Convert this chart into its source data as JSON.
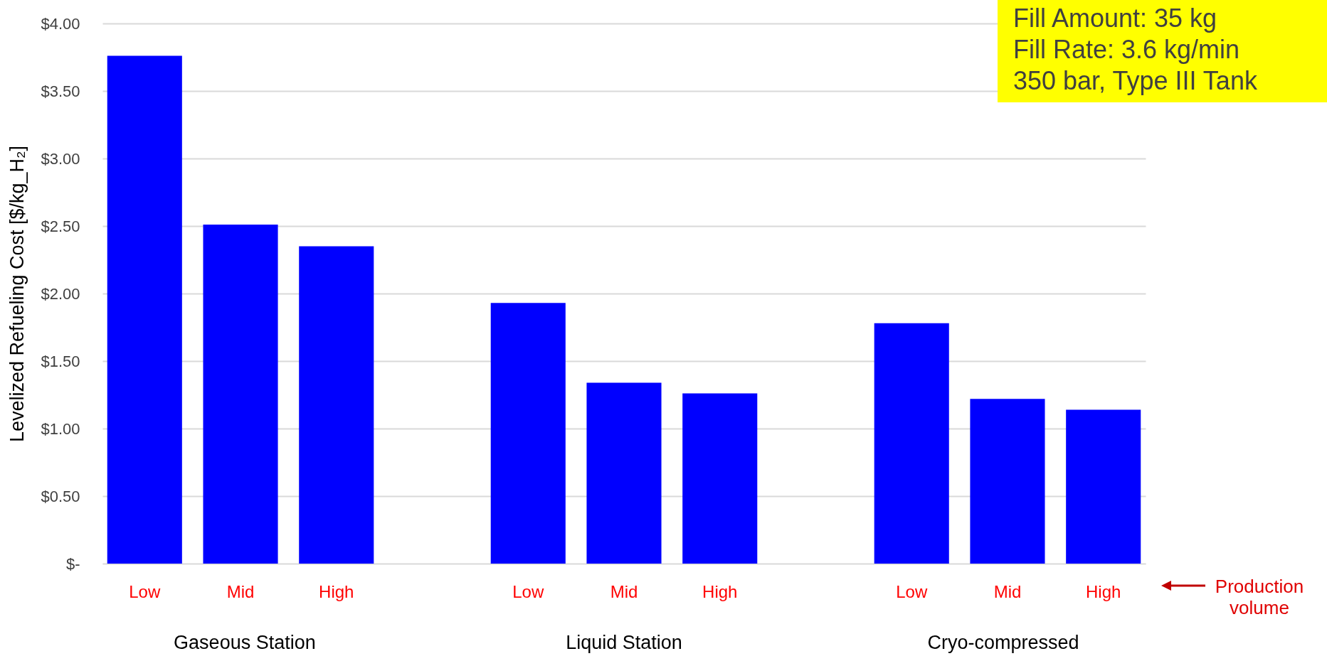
{
  "chart_data": {
    "type": "bar",
    "ylabel": "Levelized Refueling Cost [$/kg_H₂]",
    "categories": [
      "Low",
      "Mid",
      "High",
      null,
      "Low",
      "Mid",
      "High",
      null,
      "Low",
      "Mid",
      "High"
    ],
    "values": [
      3.76,
      2.51,
      2.35,
      null,
      1.93,
      1.34,
      1.26,
      null,
      1.78,
      1.22,
      1.14
    ],
    "color": "#0000ff",
    "ylim": [
      0,
      4
    ],
    "yticks": [
      {
        "value": 0,
        "label": "$-"
      },
      {
        "value": 0.5,
        "label": "$0.50"
      },
      {
        "value": 1,
        "label": "$1.00"
      },
      {
        "value": 1.5,
        "label": "$1.50"
      },
      {
        "value": 2,
        "label": "$2.00"
      },
      {
        "value": 2.5,
        "label": "$2.50"
      },
      {
        "value": 3,
        "label": "$3.00"
      },
      {
        "value": 3.5,
        "label": "$3.50"
      },
      {
        "value": 4,
        "label": "$4.00"
      }
    ],
    "grid": "y",
    "annotations": [
      "Gaseous Station",
      "Liquid Station",
      "Cryo-compressed",
      "Fill Amount: 35 kg",
      "Fill Rate: 3.6 kg/min",
      "350 bar, Type III Tank",
      "Production volume"
    ]
  }
}
